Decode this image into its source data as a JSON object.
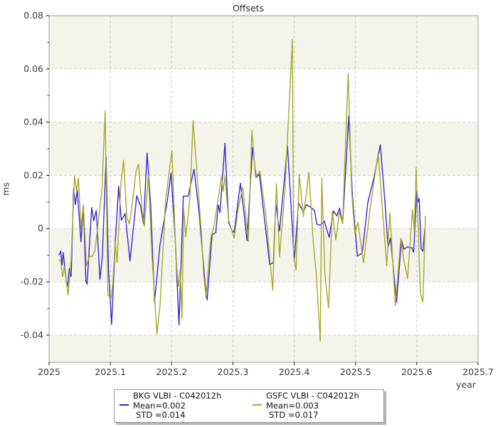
{
  "title": "Offsets",
  "axes": {
    "xlabel": "year",
    "ylabel": "ms",
    "x_tick_labels": [
      "2025",
      "2025.1",
      "2025.2",
      "2025.3",
      "2025.4",
      "2025.5",
      "2025.6",
      "2025.7"
    ],
    "y_tick_labels": [
      "0.08",
      "0.06",
      "0.04",
      "0.02",
      "0",
      "-0.02",
      "-0.04"
    ]
  },
  "colors": {
    "bkg_series": "#3b24dd",
    "gsfc_series": "#a4aa28",
    "band": "#f4f4ea",
    "grid": "#cfcfcf",
    "spine": "#a0a0a0",
    "tick": "#333333",
    "label": "#3c3c3c"
  },
  "chart_data": {
    "type": "line",
    "title": "Offsets",
    "xlabel": "year",
    "ylabel": "ms",
    "xlim": [
      2025.0,
      2025.7
    ],
    "ylim": [
      -0.0502,
      0.08
    ],
    "x_ticks": [
      2025.0,
      2025.1,
      2025.2,
      2025.3,
      2025.4,
      2025.5,
      2025.6,
      2025.7
    ],
    "y_ticks": [
      0.08,
      0.06,
      0.04,
      0.02,
      0,
      -0.02,
      -0.04
    ],
    "y_minor_ticks": [
      0.07,
      0.05,
      0.03,
      0.01,
      -0.01,
      -0.03
    ],
    "grid": true,
    "background_bands": [
      [
        0.08,
        0.06
      ],
      [
        0.04,
        0.02
      ],
      [
        0.0,
        -0.02
      ],
      [
        -0.04,
        -0.0502
      ]
    ],
    "legend_position": "bottom-center",
    "series": [
      {
        "name": "BKG VLBI - C042012h",
        "color": "#3b24dd",
        "mean": 0.002,
        "std": 0.014,
        "legend": {
          "name": "BKG VLBI - C042012h",
          "mean": "Mean=0.002",
          "std": "STD =0.014"
        },
        "points": [
          [
            2025.016,
            -0.01
          ],
          [
            2025.019,
            -0.0084
          ],
          [
            2025.021,
            -0.0137
          ],
          [
            2025.023,
            -0.009
          ],
          [
            2025.028,
            -0.0196
          ],
          [
            2025.03,
            -0.0218
          ],
          [
            2025.033,
            -0.015
          ],
          [
            2025.036,
            -0.018
          ],
          [
            2025.04,
            0.0151
          ],
          [
            2025.043,
            0.009
          ],
          [
            2025.046,
            0.0145
          ],
          [
            2025.052,
            -0.0049
          ],
          [
            2025.056,
            0.0084
          ],
          [
            2025.06,
            -0.0196
          ],
          [
            2025.062,
            -0.0209
          ],
          [
            2025.0695,
            0.0079
          ],
          [
            2025.073,
            0.0029
          ],
          [
            2025.077,
            0.0068
          ],
          [
            2025.083,
            -0.0191
          ],
          [
            2025.087,
            -0.0105
          ],
          [
            2025.093,
            0.027
          ],
          [
            2025.097,
            -0.016
          ],
          [
            2025.102,
            -0.036
          ],
          [
            2025.108,
            -0.005
          ],
          [
            2025.1135,
            0.0159
          ],
          [
            2025.118,
            0.0031
          ],
          [
            2025.124,
            0.0057
          ],
          [
            2025.132,
            -0.0121
          ],
          [
            2025.143,
            0.0124
          ],
          [
            2025.149,
            0.0085
          ],
          [
            2025.154,
            0.0018
          ],
          [
            2025.16,
            0.0284
          ],
          [
            2025.166,
            0.008
          ],
          [
            2025.172,
            -0.0276
          ],
          [
            2025.181,
            -0.006
          ],
          [
            2025.193,
            0.0107
          ],
          [
            2025.199,
            0.0209
          ],
          [
            2025.206,
            -0.005
          ],
          [
            2025.212,
            -0.0361
          ],
          [
            2025.219,
            0.0122
          ],
          [
            2025.227,
            0.0122
          ],
          [
            2025.2365,
            0.0223
          ],
          [
            2025.245,
            0.0057
          ],
          [
            2025.256,
            -0.0245
          ],
          [
            2025.258,
            -0.0268
          ],
          [
            2025.266,
            -0.0023
          ],
          [
            2025.272,
            -0.0015
          ],
          [
            2025.276,
            0.0089
          ],
          [
            2025.279,
            0.006
          ],
          [
            2025.287,
            0.032
          ],
          [
            2025.293,
            0.0022
          ],
          [
            2025.299,
            -0.0009
          ],
          [
            2025.302,
            -0.0014
          ],
          [
            2025.312,
            0.017
          ],
          [
            2025.318,
            0.006
          ],
          [
            2025.323,
            -0.0045
          ],
          [
            2025.332,
            0.0305
          ],
          [
            2025.338,
            0.0192
          ],
          [
            2025.343,
            0.0205
          ],
          [
            2025.36,
            -0.0135
          ],
          [
            2025.366,
            -0.0128
          ],
          [
            2025.37,
            0.0096
          ],
          [
            2025.376,
            -0.0009
          ],
          [
            2025.389,
            0.0312
          ],
          [
            2025.4,
            -0.0121
          ],
          [
            2025.407,
            0.0096
          ],
          [
            2025.415,
            0.0062
          ],
          [
            2025.42,
            0.009
          ],
          [
            2025.427,
            0.008
          ],
          [
            2025.433,
            0.0068
          ],
          [
            2025.437,
            0.0016
          ],
          [
            2025.443,
            0.0013
          ],
          [
            2025.449,
            0.0028
          ],
          [
            2025.457,
            -0.0033
          ],
          [
            2025.464,
            0.0066
          ],
          [
            2025.4695,
            0.0048
          ],
          [
            2025.474,
            0.0077
          ],
          [
            2025.479,
            0.0019
          ],
          [
            2025.489,
            0.0423
          ],
          [
            2025.495,
            0.0123
          ],
          [
            2025.503,
            -0.0103
          ],
          [
            2025.511,
            -0.0092
          ],
          [
            2025.52,
            0.0096
          ],
          [
            2025.531,
            0.02
          ],
          [
            2025.5405,
            0.0315
          ],
          [
            2025.548,
            0.01
          ],
          [
            2025.553,
            -0.0069
          ],
          [
            2025.557,
            -0.0036
          ],
          [
            2025.567,
            -0.0276
          ],
          [
            2025.575,
            -0.0043
          ],
          [
            2025.579,
            -0.0078
          ],
          [
            2025.584,
            -0.0069
          ],
          [
            2025.592,
            -0.0072
          ],
          [
            2025.595,
            -0.0089
          ],
          [
            2025.6,
            0.0144
          ],
          [
            2025.602,
            0.01
          ],
          [
            2025.604,
            0.0113
          ],
          [
            2025.607,
            -0.0076
          ],
          [
            2025.61,
            -0.0085
          ],
          [
            2025.613,
            0.0
          ]
        ]
      },
      {
        "name": "GSFC VLBI - C042012h",
        "color": "#a4aa28",
        "mean": 0.003,
        "std": 0.017,
        "legend": {
          "name": "GSFC VLBI - C042012h",
          "mean": "Mean=0.003",
          "std": "STD =0.017"
        },
        "points": [
          [
            2025.016,
            -0.0115
          ],
          [
            2025.019,
            -0.0124
          ],
          [
            2025.022,
            -0.018
          ],
          [
            2025.025,
            -0.0145
          ],
          [
            2025.031,
            -0.0249
          ],
          [
            2025.036,
            -0.0115
          ],
          [
            2025.0415,
            0.0196
          ],
          [
            2025.045,
            0.014
          ],
          [
            2025.048,
            0.019
          ],
          [
            2025.052,
            0.0
          ],
          [
            2025.056,
            0.0089
          ],
          [
            2025.061,
            -0.0139
          ],
          [
            2025.066,
            -0.0103
          ],
          [
            2025.07,
            -0.0106
          ],
          [
            2025.075,
            -0.0082
          ],
          [
            2025.08,
            0.0019
          ],
          [
            2025.0865,
            0.015
          ],
          [
            2025.0915,
            0.0441
          ],
          [
            2025.096,
            -0.0249
          ],
          [
            2025.101,
            -0.0262
          ],
          [
            2025.104,
            -0.0205
          ],
          [
            2025.108,
            -0.0048
          ],
          [
            2025.111,
            -0.0129
          ],
          [
            2025.117,
            0.0165
          ],
          [
            2025.1215,
            0.0257
          ],
          [
            2025.127,
            0.004
          ],
          [
            2025.131,
            0.0017
          ],
          [
            2025.136,
            0.01
          ],
          [
            2025.142,
            0.0217
          ],
          [
            2025.146,
            0.0242
          ],
          [
            2025.152,
            0.0061
          ],
          [
            2025.1555,
            0.0009
          ],
          [
            2025.162,
            0.0199
          ],
          [
            2025.168,
            -0.0105
          ],
          [
            2025.172,
            -0.0255
          ],
          [
            2025.176,
            -0.0396
          ],
          [
            2025.181,
            -0.029
          ],
          [
            2025.19,
            0.0107
          ],
          [
            2025.2005,
            0.0293
          ],
          [
            2025.207,
            -0.011
          ],
          [
            2025.211,
            -0.0218
          ],
          [
            2025.214,
            -0.0155
          ],
          [
            2025.217,
            -0.0338
          ],
          [
            2025.2195,
            0.0076
          ],
          [
            2025.223,
            -0.0031
          ],
          [
            2025.23,
            0.012
          ],
          [
            2025.235,
            0.0406
          ],
          [
            2025.242,
            0.0186
          ],
          [
            2025.249,
            -0.0031
          ],
          [
            2025.252,
            -0.0165
          ],
          [
            2025.256,
            -0.0259
          ],
          [
            2025.264,
            -0.0031
          ],
          [
            2025.269,
            0.0008
          ],
          [
            2025.2815,
            0.0196
          ],
          [
            2025.284,
            0.014
          ],
          [
            2025.287,
            0.0196
          ],
          [
            2025.293,
            0.0031
          ],
          [
            2025.302,
            -0.0036
          ],
          [
            2025.309,
            0.008
          ],
          [
            2025.316,
            0.0156
          ],
          [
            2025.325,
            -0.0048
          ],
          [
            2025.331,
            0.0369
          ],
          [
            2025.337,
            0.0192
          ],
          [
            2025.344,
            0.0216
          ],
          [
            2025.354,
            0.0046
          ],
          [
            2025.365,
            -0.0232
          ],
          [
            2025.371,
            0.0169
          ],
          [
            2025.376,
            -0.0107
          ],
          [
            2025.385,
            0.015
          ],
          [
            2025.397,
            0.0711
          ],
          [
            2025.399,
            -0.0103
          ],
          [
            2025.403,
            -0.0156
          ],
          [
            2025.408,
            0.0203
          ],
          [
            2025.415,
            0.0046
          ],
          [
            2025.424,
            0.0212
          ],
          [
            2025.431,
            -0.005
          ],
          [
            2025.436,
            -0.0172
          ],
          [
            2025.4425,
            -0.0423
          ],
          [
            2025.445,
            0.019
          ],
          [
            2025.45,
            -0.017
          ],
          [
            2025.456,
            -0.0298
          ],
          [
            2025.462,
            0.0064
          ],
          [
            2025.468,
            -0.0043
          ],
          [
            2025.4735,
            0.0062
          ],
          [
            2025.479,
            0.002
          ],
          [
            2025.488,
            0.0583
          ],
          [
            2025.494,
            0.013
          ],
          [
            2025.499,
            -0.0019
          ],
          [
            2025.504,
            0.0024
          ],
          [
            2025.513,
            -0.0129
          ],
          [
            2025.525,
            0.0096
          ],
          [
            2025.537,
            0.0284
          ],
          [
            2025.551,
            -0.014
          ],
          [
            2025.556,
            0.006
          ],
          [
            2025.565,
            -0.0289
          ],
          [
            2025.574,
            -0.0036
          ],
          [
            2025.579,
            -0.012
          ],
          [
            2025.585,
            -0.0187
          ],
          [
            2025.593,
            0.0072
          ],
          [
            2025.596,
            -0.0011
          ],
          [
            2025.599,
            0.0229
          ],
          [
            2025.606,
            -0.0245
          ],
          [
            2025.61,
            -0.0276
          ],
          [
            2025.614,
            0.0048
          ]
        ]
      }
    ]
  }
}
